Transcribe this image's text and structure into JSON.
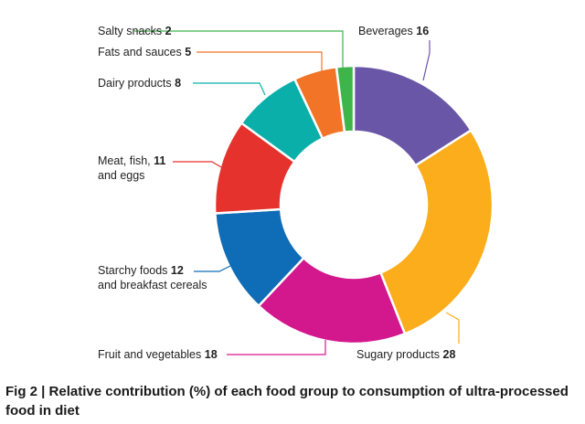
{
  "figure": {
    "caption": "Fig 2 | Relative contribution (%) of each food group to consumption of ultra-processed food in diet"
  },
  "chart_data": {
    "type": "pie",
    "style": "donut",
    "start_category": "Beverages",
    "direction": "clockwise",
    "categories": [
      "Beverages",
      "Sugary products",
      "Fruit and vegetables",
      "Starchy foods and breakfast cereals",
      "Meat, fish, and eggs",
      "Dairy products",
      "Fats and sauces",
      "Salty snacks"
    ],
    "values": [
      16,
      28,
      18,
      12,
      11,
      8,
      5,
      2
    ],
    "colors": [
      "#6a56a6",
      "#fbad1b",
      "#d3178d",
      "#0f6cb6",
      "#e5322d",
      "#0aafaa",
      "#f27426",
      "#3db54a"
    ],
    "labels": [
      {
        "lines": [
          "Beverages"
        ],
        "value": "16"
      },
      {
        "lines": [
          "Sugary products"
        ],
        "value": "28"
      },
      {
        "lines": [
          "Fruit and vegetables"
        ],
        "value": "18"
      },
      {
        "lines": [
          "Starchy foods",
          "and breakfast cereals"
        ],
        "value": "12"
      },
      {
        "lines": [
          "Meat, fish,",
          "and eggs"
        ],
        "value": "11"
      },
      {
        "lines": [
          "Dairy products"
        ],
        "value": "8"
      },
      {
        "lines": [
          "Fats and sauces"
        ],
        "value": "5"
      },
      {
        "lines": [
          "Salty snacks"
        ],
        "value": "2"
      }
    ],
    "legend": "none",
    "unit": "%"
  }
}
